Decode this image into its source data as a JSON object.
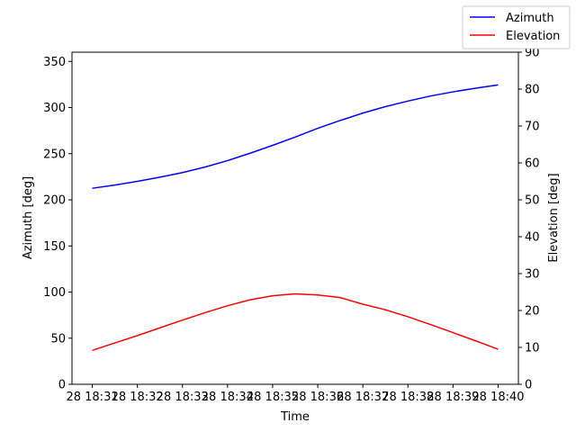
{
  "chart_data": {
    "type": "line",
    "xlabel": "Time",
    "ylabel_left": "Azimuth [deg]",
    "ylabel_right": "Elevation [deg]",
    "x_tick_labels": [
      "28 18:31",
      "28 18:32",
      "28 18:33",
      "28 18:34",
      "28 18:35",
      "28 18:36",
      "28 18:37",
      "28 18:38",
      "28 18:39",
      "28 18:40"
    ],
    "x_tick_minutes": [
      31,
      32,
      33,
      34,
      35,
      36,
      37,
      38,
      39,
      40
    ],
    "xlim_minutes": [
      30.55,
      40.45
    ],
    "ylim_left": [
      0,
      360
    ],
    "ylim_right": [
      0,
      90
    ],
    "y_ticks_left": [
      0,
      50,
      100,
      150,
      200,
      250,
      300,
      350
    ],
    "y_ticks_right": [
      0,
      10,
      20,
      30,
      40,
      50,
      60,
      70,
      80,
      90
    ],
    "grid": false,
    "legend": "top-right, outside plot",
    "series": [
      {
        "name": "Azimuth",
        "axis": "left",
        "color": "#0000ff",
        "x_minutes": [
          31.0,
          31.5,
          32.0,
          32.5,
          33.0,
          33.5,
          34.0,
          34.5,
          35.0,
          35.5,
          36.0,
          36.5,
          37.0,
          37.5,
          38.0,
          38.5,
          39.0,
          39.5,
          40.0
        ],
        "values": [
          212.5,
          216.0,
          220.0,
          224.5,
          229.5,
          235.5,
          242.5,
          250.5,
          259.0,
          268.0,
          277.5,
          286.0,
          294.0,
          301.0,
          307.0,
          312.5,
          317.0,
          321.0,
          324.5
        ]
      },
      {
        "name": "Elevation",
        "axis": "right",
        "color": "#ff0000",
        "x_minutes": [
          31.0,
          31.5,
          32.0,
          32.5,
          33.0,
          33.5,
          34.0,
          34.5,
          35.0,
          35.5,
          36.0,
          36.5,
          37.0,
          37.5,
          38.0,
          38.5,
          39.0,
          39.5,
          40.0
        ],
        "values": [
          9.2,
          11.2,
          13.2,
          15.3,
          17.4,
          19.4,
          21.3,
          22.9,
          24.0,
          24.5,
          24.2,
          23.5,
          21.7,
          20.2,
          18.3,
          16.2,
          14.0,
          11.8,
          9.5
        ]
      }
    ]
  }
}
